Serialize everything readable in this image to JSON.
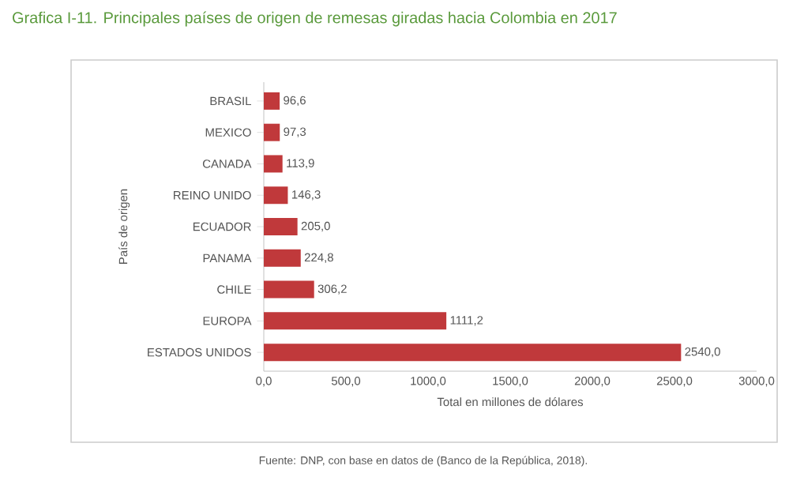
{
  "chart_data": {
    "type": "bar",
    "orientation": "horizontal",
    "title": "Grafica I-11. Principales países de origen de remesas giradas hacia Colombia en 2017",
    "categories": [
      "BRASIL",
      "MEXICO",
      "CANADA",
      "REINO UNIDO",
      "ECUADOR",
      "PANAMA",
      "CHILE",
      "EUROPA",
      "ESTADOS UNIDOS"
    ],
    "values": [
      96.6,
      97.3,
      113.9,
      146.3,
      205.0,
      224.8,
      306.2,
      1111.2,
      2540.0
    ],
    "value_labels": [
      "96,6",
      "97,3",
      "113,9",
      "146,3",
      "205,0",
      "224,8",
      "306,2",
      "1111,2",
      "2540,0"
    ],
    "color": "#c0393b",
    "xlim": [
      0,
      3000
    ],
    "xticks": [
      {
        "value": 0,
        "label": "0,0"
      },
      {
        "value": 500,
        "label": "500,0"
      },
      {
        "value": 1000,
        "label": "1000,0"
      },
      {
        "value": 1500,
        "label": "1500,0"
      },
      {
        "value": 2000,
        "label": "2000,0"
      },
      {
        "value": 2500,
        "label": "2500,0"
      },
      {
        "value": 3000,
        "label": "3000,0"
      }
    ],
    "xlabel": "Total en millones de dólares",
    "ylabel": "País de origen",
    "annotations": [
      "Fuente: DNP, con base en datos de (Banco de la República, 2018)."
    ]
  }
}
